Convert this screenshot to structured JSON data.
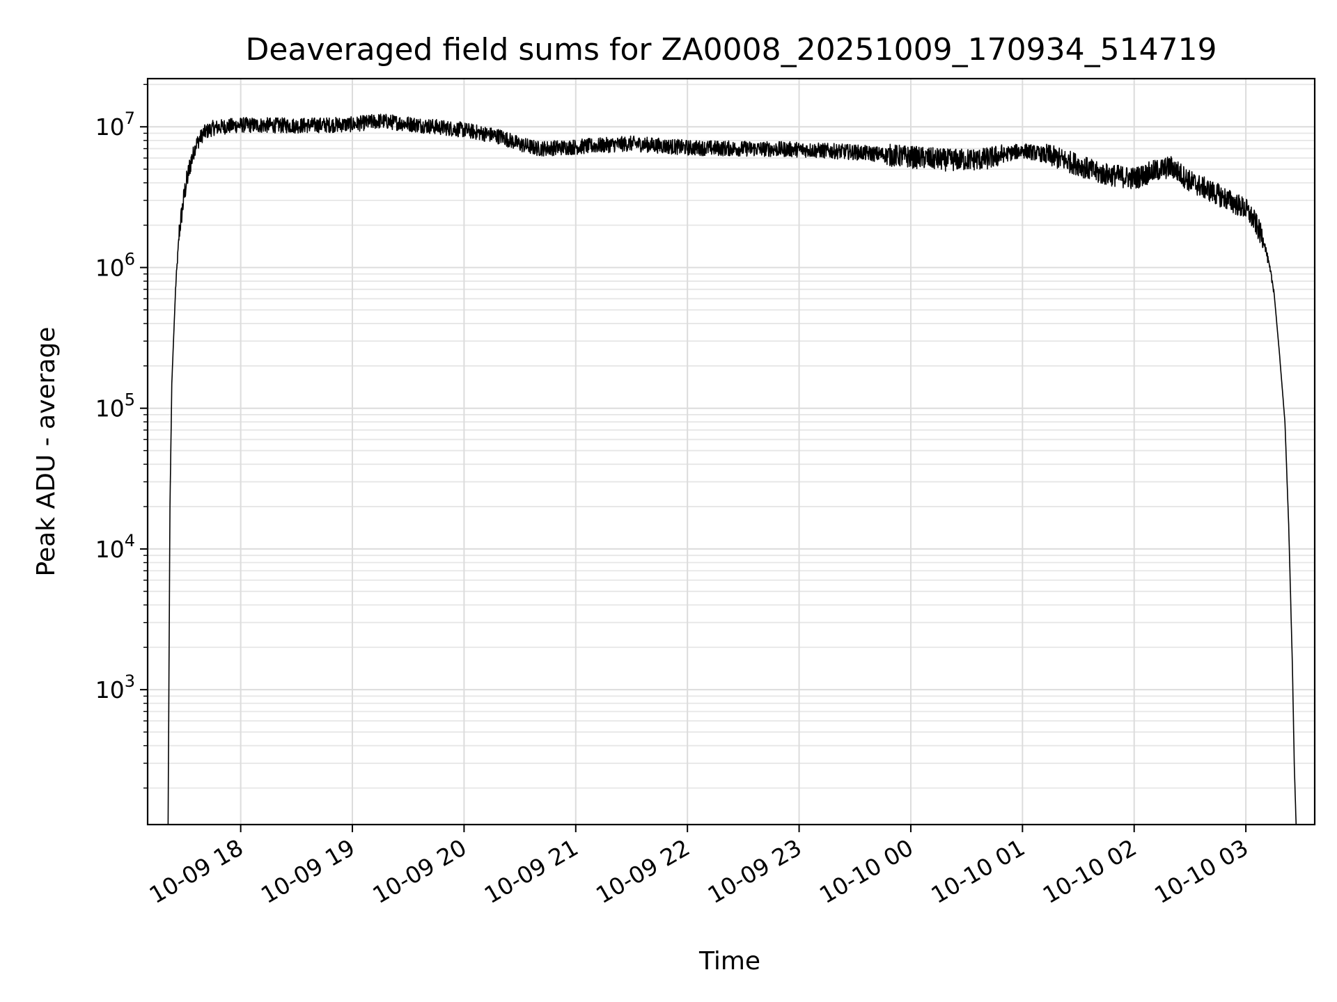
{
  "chart_data": {
    "type": "line",
    "title": "Deaveraged field sums for ZA0008_20251009_170934_514719",
    "xlabel": "Time",
    "ylabel": "Peak ADU - average",
    "yscale": "log",
    "ylim": [
      110,
      22000000
    ],
    "xlim": [
      "2025-10-09 17:10",
      "2025-10-10 03:37"
    ],
    "grid": true,
    "line_color": "#000000",
    "x_ticks": [
      {
        "x": "2025-10-09 18:00",
        "label": "10-09 18"
      },
      {
        "x": "2025-10-09 19:00",
        "label": "10-09 19"
      },
      {
        "x": "2025-10-09 20:00",
        "label": "10-09 20"
      },
      {
        "x": "2025-10-09 21:00",
        "label": "10-09 21"
      },
      {
        "x": "2025-10-09 22:00",
        "label": "10-09 22"
      },
      {
        "x": "2025-10-09 23:00",
        "label": "10-09 23"
      },
      {
        "x": "2025-10-10 00:00",
        "label": "10-10 00"
      },
      {
        "x": "2025-10-10 01:00",
        "label": "10-10 01"
      },
      {
        "x": "2025-10-10 02:00",
        "label": "10-10 02"
      },
      {
        "x": "2025-10-10 03:00",
        "label": "10-10 03"
      }
    ],
    "y_ticks": [
      {
        "value": 1000,
        "base": "10",
        "exp": "3"
      },
      {
        "value": 10000,
        "base": "10",
        "exp": "4"
      },
      {
        "value": 100000,
        "base": "10",
        "exp": "5"
      },
      {
        "value": 1000000,
        "base": "10",
        "exp": "6"
      },
      {
        "value": 10000000,
        "base": "10",
        "exp": "7"
      }
    ],
    "series": [
      {
        "x": [
          "2025-10-09 17:21",
          "2025-10-09 17:22",
          "2025-10-09 17:23",
          "2025-10-09 17:25",
          "2025-10-09 17:27",
          "2025-10-09 17:30",
          "2025-10-09 17:33",
          "2025-10-09 17:36",
          "2025-10-09 17:40",
          "2025-10-09 17:45",
          "2025-10-09 17:50",
          "2025-10-09 18:00",
          "2025-10-09 18:30",
          "2025-10-09 19:00",
          "2025-10-09 19:15",
          "2025-10-09 19:30",
          "2025-10-09 20:00",
          "2025-10-09 20:20",
          "2025-10-09 20:30",
          "2025-10-09 20:40",
          "2025-10-09 21:00",
          "2025-10-09 21:30",
          "2025-10-09 22:00",
          "2025-10-09 22:30",
          "2025-10-09 23:00",
          "2025-10-09 23:30",
          "2025-10-10 00:00",
          "2025-10-10 00:20",
          "2025-10-10 00:40",
          "2025-10-10 01:00",
          "2025-10-10 01:15",
          "2025-10-10 01:30",
          "2025-10-10 01:40",
          "2025-10-10 02:00",
          "2025-10-10 02:10",
          "2025-10-10 02:20",
          "2025-10-10 02:30",
          "2025-10-10 02:45",
          "2025-10-10 03:00",
          "2025-10-10 03:05",
          "2025-10-10 03:10",
          "2025-10-10 03:15",
          "2025-10-10 03:18",
          "2025-10-10 03:21",
          "2025-10-10 03:23",
          "2025-10-10 03:25",
          "2025-10-10 03:26",
          "2025-10-10 03:27"
        ],
        "y": [
          110,
          20000,
          150000,
          700000,
          1800000,
          3500000,
          5500000,
          7500000,
          9000000,
          9800000,
          10000000,
          10300000,
          10200000,
          10400000,
          11000000,
          10500000,
          9500000,
          8500000,
          7500000,
          7000000,
          7200000,
          7600000,
          7100000,
          7000000,
          6900000,
          6600000,
          6100000,
          5800000,
          5900000,
          6800000,
          6200000,
          5400000,
          4700000,
          4300000,
          4800000,
          5200000,
          4100000,
          3300000,
          2600000,
          2100000,
          1500000,
          700000,
          250000,
          80000,
          15000,
          1500,
          300,
          110
        ]
      }
    ]
  }
}
